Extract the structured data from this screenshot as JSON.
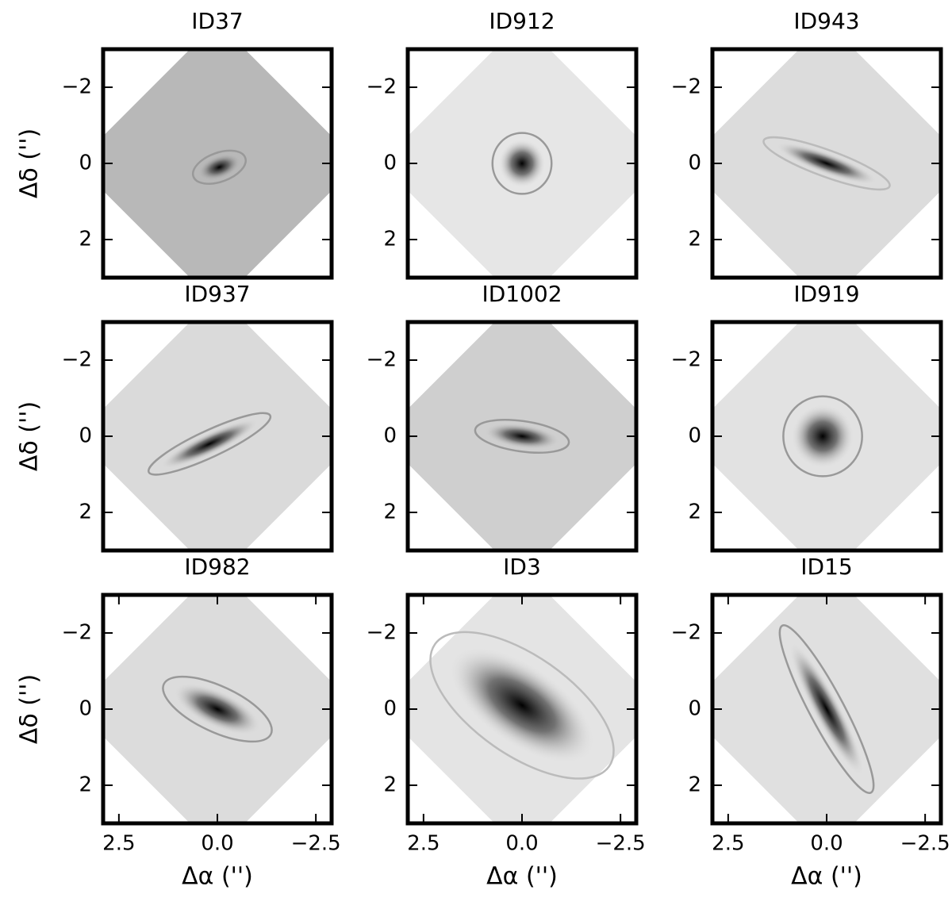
{
  "chart_data": [
    {
      "type": "image",
      "title": "ID37",
      "title_color": "#000000",
      "image_color": "#b8b8b8",
      "ylim": [
        3,
        -3
      ],
      "yticks": [
        {
          "value": -2,
          "label": "−2"
        },
        0,
        2
      ],
      "ylabel": "Δδ ('')",
      "ellipse": {
        "cx": -0.05,
        "cy": 0.1,
        "a": 0.7,
        "b": 0.38,
        "angle": -20,
        "color": "#999999"
      }
    },
    {
      "type": "image",
      "title": "ID912",
      "title_color": "#000000",
      "image_color": "#e6e6e6",
      "ylim": [
        3,
        -3
      ],
      "yticks": [
        {
          "value": -2,
          "label": "−2"
        },
        0,
        2
      ],
      "ellipse": {
        "cx": 0,
        "cy": 0,
        "a": 0.75,
        "b": 0.8,
        "angle": 0,
        "color": "#999999"
      }
    },
    {
      "type": "image",
      "title": "ID943",
      "title_color": "#999999",
      "image_color": "#dcdcdc",
      "ylim": [
        3,
        -3
      ],
      "yticks": [
        {
          "value": -2,
          "label": "−2"
        },
        0,
        2
      ],
      "ellipse": {
        "cx": 0,
        "cy": 0,
        "a": 1.7,
        "b": 0.35,
        "angle": 20,
        "color": "#bbbbbb"
      }
    },
    {
      "type": "image",
      "title": "ID937",
      "title_color": "#000000",
      "image_color": "#dadada",
      "ylim": [
        3,
        -3
      ],
      "yticks": [
        {
          "value": -2,
          "label": "−2"
        },
        0,
        2
      ],
      "ylabel": "Δδ ('')",
      "ellipse": {
        "cx": 0.2,
        "cy": 0.2,
        "a": 1.7,
        "b": 0.35,
        "angle": -25,
        "color": "#999999"
      }
    },
    {
      "type": "image",
      "title": "ID1002",
      "title_color": "#000000",
      "image_color": "#cfcfcf",
      "ylim": [
        3,
        -3
      ],
      "yticks": [
        {
          "value": -2,
          "label": "−2"
        },
        0,
        2
      ],
      "ellipse": {
        "cx": 0,
        "cy": 0,
        "a": 1.2,
        "b": 0.4,
        "angle": 8,
        "color": "#999999"
      }
    },
    {
      "type": "image",
      "title": "ID919",
      "title_color": "#999999",
      "image_color": "#e2e2e2",
      "ylim": [
        3,
        -3
      ],
      "yticks": [
        {
          "value": -2,
          "label": "−2"
        },
        0,
        2
      ],
      "ellipse": {
        "cx": 0.1,
        "cy": 0,
        "a": 1.0,
        "b": 1.05,
        "angle": 0,
        "color": "#999999"
      }
    },
    {
      "type": "image",
      "title": "ID982",
      "title_color": "#000000",
      "image_color": "#dcdcdc",
      "xlim": [
        2.9,
        -2.9
      ],
      "xticks": [
        2.5,
        {
          "value": 0,
          "label": "0.0"
        },
        {
          "value": -2.5,
          "label": "−2.5"
        }
      ],
      "xlabel": "Δα ('')",
      "ylim": [
        3,
        -3
      ],
      "yticks": [
        {
          "value": -2,
          "label": "−2"
        },
        0,
        2
      ],
      "ylabel": "Δδ ('')",
      "ellipse": {
        "cx": 0,
        "cy": 0,
        "a": 1.5,
        "b": 0.6,
        "angle": 25,
        "color": "#999999"
      }
    },
    {
      "type": "image",
      "title": "ID3",
      "title_color": "#000000",
      "image_color": "#e4e4e4",
      "xlim": [
        2.9,
        -2.9
      ],
      "xticks": [
        2.5,
        {
          "value": 0,
          "label": "0.0"
        },
        {
          "value": -2.5,
          "label": "−2.5"
        }
      ],
      "xlabel": "Δα ('')",
      "ylim": [
        3,
        -3
      ],
      "yticks": [
        {
          "value": -2,
          "label": "−2"
        },
        0,
        2
      ],
      "ellipse": {
        "cx": 0,
        "cy": -0.1,
        "a": 2.7,
        "b": 1.3,
        "angle": 35,
        "color": "#bbbbbb"
      }
    },
    {
      "type": "image",
      "title": "ID15",
      "title_color": "#000000",
      "image_color": "#e0e0e0",
      "xlim": [
        2.9,
        -2.9
      ],
      "xticks": [
        2.5,
        {
          "value": 0,
          "label": "0.0"
        },
        {
          "value": -2.5,
          "label": "−2.5"
        }
      ],
      "xlabel": "Δα ('')",
      "ylim": [
        3,
        -3
      ],
      "yticks": [
        {
          "value": -2,
          "label": "−2"
        },
        0,
        2
      ],
      "ellipse": {
        "cx": 0,
        "cy": 0,
        "a": 2.4,
        "b": 0.45,
        "angle": 62,
        "color": "#999999"
      }
    }
  ]
}
